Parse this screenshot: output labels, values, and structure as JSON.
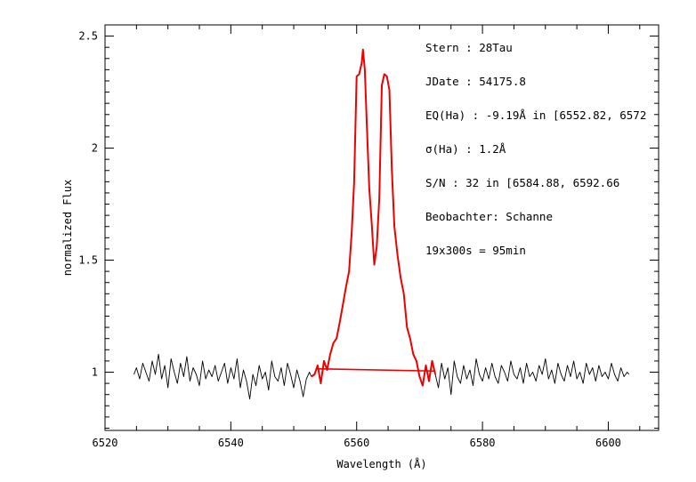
{
  "chart_data": {
    "type": "line",
    "xlabel": "Wavelength (Å)",
    "ylabel": "normalized Flux",
    "xlim": [
      6520,
      6608
    ],
    "ylim": [
      0.74,
      2.55
    ],
    "x_ticks": [
      6520,
      6540,
      6560,
      6580,
      6600
    ],
    "y_ticks": [
      1,
      1.5,
      2,
      2.5
    ],
    "x_tick_labels": [
      "6520",
      "6540",
      "6560",
      "6580",
      "6600"
    ],
    "y_tick_labels": [
      "1",
      "1.5",
      "2",
      "2.5"
    ],
    "grid": false,
    "annotations": [
      "Stern    : 28Tau",
      "JDate    : 54175.8",
      "EQ(Ha) : -9.19Å in [6552.82, 6572",
      "σ(Ha)    : 1.2Å",
      "S/N      : 32 in [6584.88, 6592.66",
      "Beobachter: Schanne",
      "19x300s = 95min"
    ],
    "series": [
      {
        "color": "#000000",
        "x": [
          6524.6,
          6525.0,
          6525.5,
          6526.0,
          6526.5,
          6527.0,
          6527.5,
          6528.0,
          6528.5,
          6529.0,
          6529.5,
          6530.0,
          6530.5,
          6531.0,
          6531.5,
          6532.0,
          6532.5,
          6533.0,
          6533.5,
          6534.0,
          6534.5,
          6535.0,
          6535.5,
          6536.0,
          6536.5,
          6537.0,
          6537.5,
          6538.0,
          6538.5,
          6539.0,
          6539.5,
          6540.0,
          6540.5,
          6541.0,
          6541.5,
          6542.0,
          6542.5,
          6543.0,
          6543.5,
          6544.0,
          6544.5,
          6545.0,
          6545.5,
          6546.0,
          6546.5,
          6547.0,
          6547.5,
          6548.0,
          6548.5,
          6549.0,
          6549.5,
          6550.0,
          6550.5,
          6551.0,
          6551.5,
          6552.0,
          6552.5,
          6552.8
        ],
        "y": [
          0.99,
          1.02,
          0.97,
          1.04,
          1.0,
          0.96,
          1.05,
          0.99,
          1.08,
          0.97,
          1.03,
          0.93,
          1.06,
          1.0,
          0.95,
          1.04,
          0.98,
          1.07,
          0.96,
          1.02,
          0.99,
          0.94,
          1.05,
          0.97,
          1.01,
          0.98,
          1.03,
          0.96,
          1.0,
          1.04,
          0.95,
          1.02,
          0.97,
          1.06,
          0.93,
          1.01,
          0.96,
          0.88,
          0.99,
          0.94,
          1.03,
          0.97,
          1.0,
          0.92,
          1.05,
          0.98,
          0.96,
          1.02,
          0.94,
          1.04,
          0.99,
          0.93,
          1.01,
          0.96,
          0.89,
          0.97,
          1.0,
          0.98
        ]
      },
      {
        "color": "#ee0000",
        "x": [
          6552.8,
          6553.3,
          6553.8,
          6554.3,
          6554.8,
          6555.3,
          6555.8,
          6556.3,
          6556.8,
          6557.3,
          6557.8,
          6558.3,
          6558.8,
          6559.2,
          6559.6,
          6560.0,
          6560.4,
          6560.8,
          6561.0,
          6561.3,
          6561.6,
          6562.0,
          6562.4,
          6562.8,
          6563.2,
          6563.6,
          6564.0,
          6564.4,
          6564.8,
          6565.2,
          6565.6,
          6566.0,
          6566.5,
          6567.0,
          6567.5,
          6568.0,
          6568.5,
          6569.0,
          6569.5,
          6570.0,
          6570.5,
          6571.0,
          6571.5,
          6572.0,
          6572.5
        ],
        "y": [
          0.98,
          0.99,
          1.03,
          0.95,
          1.05,
          1.01,
          1.08,
          1.13,
          1.15,
          1.22,
          1.3,
          1.38,
          1.45,
          1.62,
          1.85,
          2.32,
          2.33,
          2.38,
          2.44,
          2.35,
          2.12,
          1.82,
          1.66,
          1.48,
          1.56,
          1.78,
          2.28,
          2.33,
          2.32,
          2.26,
          1.9,
          1.65,
          1.52,
          1.42,
          1.35,
          1.2,
          1.15,
          1.08,
          1.05,
          0.98,
          0.94,
          1.03,
          0.96,
          1.05,
          0.99
        ]
      },
      {
        "color": "#000000",
        "x": [
          6572.5,
          6573.0,
          6573.5,
          6574.0,
          6574.5,
          6575.0,
          6575.5,
          6576.0,
          6576.5,
          6577.0,
          6577.5,
          6578.0,
          6578.5,
          6579.0,
          6579.5,
          6580.0,
          6580.5,
          6581.0,
          6581.5,
          6582.0,
          6582.5,
          6583.0,
          6583.5,
          6584.0,
          6584.5,
          6585.0,
          6585.5,
          6586.0,
          6586.5,
          6587.0,
          6587.5,
          6588.0,
          6588.5,
          6589.0,
          6589.5,
          6590.0,
          6590.5,
          6591.0,
          6591.5,
          6592.0,
          6592.5,
          6593.0,
          6593.5,
          6594.0,
          6594.5,
          6595.0,
          6595.5,
          6596.0,
          6596.5,
          6597.0,
          6597.5,
          6598.0,
          6598.5,
          6599.0,
          6599.5,
          6600.0,
          6600.5,
          6601.0,
          6601.5,
          6602.0,
          6602.5,
          6603.0,
          6603.3
        ],
        "y": [
          0.99,
          0.93,
          1.04,
          0.97,
          1.02,
          0.9,
          1.05,
          0.98,
          0.95,
          1.03,
          0.97,
          1.01,
          0.94,
          1.06,
          0.99,
          0.96,
          1.02,
          0.97,
          1.04,
          0.98,
          0.95,
          1.03,
          1.0,
          0.96,
          1.05,
          0.99,
          0.97,
          1.02,
          0.95,
          1.04,
          0.98,
          1.0,
          0.96,
          1.03,
          0.99,
          1.06,
          0.97,
          1.01,
          0.95,
          1.04,
          0.99,
          0.96,
          1.03,
          0.98,
          1.05,
          0.97,
          1.0,
          0.95,
          1.04,
          0.99,
          1.02,
          0.96,
          1.03,
          0.98,
          1.0,
          0.97,
          1.04,
          0.99,
          0.96,
          1.02,
          0.98,
          1.0,
          0.99
        ]
      }
    ],
    "continuum_line": {
      "color": "#ee0000",
      "x": [
        6553.5,
        6572.5
      ],
      "y": [
        1.015,
        1.005
      ]
    }
  }
}
